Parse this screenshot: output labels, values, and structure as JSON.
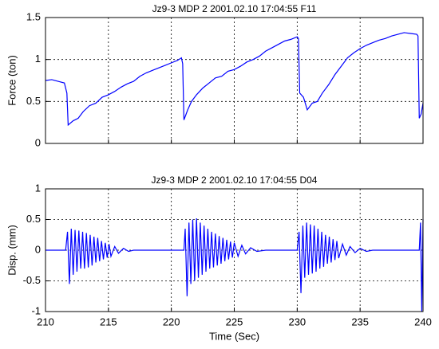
{
  "chart_data": [
    {
      "type": "line",
      "title": "Jz9-3 MDP 2 2001.02.10 17:04:55 F11",
      "y_label": "Force (ton)",
      "xlim": [
        210,
        240
      ],
      "xticks": [
        210,
        215,
        220,
        225,
        230,
        235,
        240
      ],
      "show_xtick_labels": false,
      "ylim": [
        0,
        1.5
      ],
      "yticks": [
        0,
        0.5,
        1,
        1.5
      ],
      "grid": true,
      "series": [
        {
          "color": "#0000ff",
          "x": [
            210,
            210.5,
            211,
            211.5,
            211.7,
            211.8,
            212.2,
            212.6,
            213,
            213.5,
            214,
            214.5,
            215,
            215.5,
            216,
            216.5,
            217,
            217.5,
            218,
            218.5,
            219,
            219.5,
            220,
            220.5,
            220.8,
            220.9,
            221,
            221.3,
            221.6,
            222,
            222.5,
            223,
            223.5,
            224,
            224.5,
            225,
            225.5,
            226,
            226.5,
            227,
            227.5,
            228,
            228.5,
            229,
            229.5,
            230,
            230.1,
            230.2,
            230.5,
            230.8,
            231.2,
            231.6,
            232,
            232.5,
            233,
            233.5,
            234,
            234.5,
            235,
            235.5,
            236,
            236.5,
            237,
            237.5,
            238,
            238.5,
            239,
            239.5,
            239.6,
            239.7,
            239.85,
            240
          ],
          "values": [
            0.75,
            0.76,
            0.74,
            0.72,
            0.6,
            0.22,
            0.27,
            0.3,
            0.38,
            0.45,
            0.48,
            0.55,
            0.58,
            0.62,
            0.67,
            0.71,
            0.74,
            0.8,
            0.84,
            0.87,
            0.9,
            0.93,
            0.96,
            0.99,
            1.02,
            0.95,
            0.28,
            0.4,
            0.5,
            0.58,
            0.66,
            0.72,
            0.78,
            0.8,
            0.86,
            0.88,
            0.92,
            0.97,
            1.0,
            1.04,
            1.1,
            1.14,
            1.18,
            1.22,
            1.24,
            1.27,
            1.25,
            0.6,
            0.55,
            0.4,
            0.48,
            0.5,
            0.6,
            0.7,
            0.82,
            0.92,
            1.02,
            1.08,
            1.13,
            1.17,
            1.2,
            1.23,
            1.25,
            1.28,
            1.3,
            1.32,
            1.31,
            1.3,
            1.28,
            0.3,
            0.35,
            0.48
          ]
        }
      ]
    },
    {
      "type": "line",
      "title": "Jz9-3 MDP 2 2001.02.10 17:04:55 D04",
      "x_label": "Time (Sec)",
      "y_label": "Disp. (mm)",
      "xlim": [
        210,
        240
      ],
      "xticks": [
        210,
        215,
        220,
        225,
        230,
        235,
        240
      ],
      "show_xtick_labels": true,
      "ylim": [
        -1,
        1
      ],
      "yticks": [
        -1,
        -0.5,
        0,
        0.5,
        1
      ],
      "grid": true,
      "series": [
        {
          "color": "#0000ff",
          "x": [
            210,
            211,
            211.6,
            211.75,
            211.9,
            212.05,
            212.2,
            212.35,
            212.5,
            212.65,
            212.8,
            212.95,
            213.1,
            213.25,
            213.4,
            213.55,
            213.7,
            213.85,
            214,
            214.15,
            214.3,
            214.45,
            214.6,
            214.75,
            214.9,
            215.05,
            215.2,
            215.5,
            215.8,
            216.2,
            216.6,
            217,
            221,
            221.1,
            221.25,
            221.4,
            221.55,
            221.7,
            221.85,
            222,
            222.15,
            222.3,
            222.45,
            222.6,
            222.75,
            222.9,
            223.05,
            223.2,
            223.35,
            223.5,
            223.65,
            223.8,
            223.95,
            224.1,
            224.25,
            224.4,
            224.55,
            224.7,
            224.85,
            225,
            225.3,
            225.6,
            225.9,
            226.3,
            226.8,
            227.5,
            230,
            230.15,
            230.3,
            230.45,
            230.6,
            230.75,
            230.9,
            231.05,
            231.2,
            231.35,
            231.5,
            231.65,
            231.8,
            231.95,
            232.1,
            232.25,
            232.4,
            232.55,
            232.7,
            232.85,
            233,
            233.15,
            233.3,
            233.6,
            233.9,
            234.2,
            234.6,
            235,
            235.5,
            236,
            239.7,
            239.8,
            239.9,
            240
          ],
          "values": [
            0,
            0,
            0,
            0.3,
            -0.55,
            0.35,
            -0.4,
            0.33,
            -0.35,
            0.32,
            -0.3,
            0.3,
            -0.3,
            0.28,
            -0.28,
            0.25,
            -0.25,
            0.22,
            -0.2,
            0.2,
            -0.18,
            0.15,
            -0.15,
            0.12,
            -0.12,
            0.1,
            -0.1,
            0.06,
            -0.05,
            0.03,
            -0.02,
            0,
            0,
            0.35,
            -0.75,
            0.45,
            -0.55,
            0.5,
            -0.5,
            0.52,
            -0.45,
            0.45,
            -0.4,
            0.4,
            -0.35,
            0.35,
            -0.3,
            0.3,
            -0.28,
            0.27,
            -0.25,
            0.23,
            -0.22,
            0.2,
            -0.18,
            0.17,
            -0.15,
            0.14,
            -0.12,
            0.12,
            -0.1,
            0.08,
            -0.06,
            0.04,
            -0.02,
            0,
            0,
            0.3,
            -0.7,
            0.4,
            -0.45,
            0.45,
            -0.4,
            0.42,
            -0.38,
            0.4,
            -0.35,
            0.35,
            -0.3,
            0.3,
            -0.27,
            0.25,
            -0.22,
            0.22,
            -0.2,
            0.18,
            -0.16,
            0.15,
            -0.13,
            0.1,
            -0.08,
            0.06,
            -0.04,
            0.03,
            -0.02,
            0,
            0,
            0.45,
            -1,
            0.5
          ]
        }
      ]
    }
  ]
}
